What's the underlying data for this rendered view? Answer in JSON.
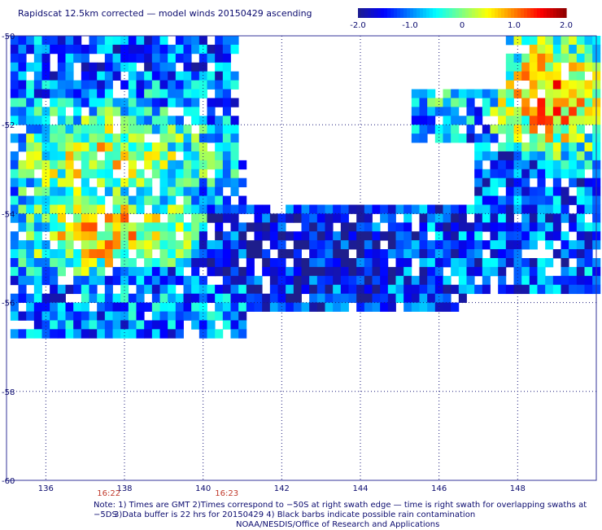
{
  "title": "Rapidscat 12.5km corrected — model winds 20150429 ascending",
  "colorbar": {
    "ticks": [
      "-2.0",
      "-1.0",
      "0",
      "1.0",
      "2.0"
    ],
    "tick_values": [
      -2,
      -1,
      0,
      1,
      2
    ],
    "range": [
      -2,
      2
    ],
    "colors": [
      "#1e1e8c",
      "#0000ff",
      "#0080ff",
      "#00ffff",
      "#80ff80",
      "#ffff00",
      "#ff8000",
      "#ff0000",
      "#8b0000"
    ]
  },
  "chart_data": {
    "type": "heatmap",
    "title": "Rapidscat 12.5km corrected — model winds 20150429 ascending",
    "xlabel": "",
    "ylabel": "",
    "xlim": [
      135,
      150
    ],
    "ylim": [
      -60,
      -50
    ],
    "x_ticks": [
      "136",
      "138",
      "140",
      "142",
      "144",
      "146",
      "148"
    ],
    "x_tick_values": [
      136,
      138,
      140,
      142,
      144,
      146,
      148
    ],
    "y_ticks": [
      "-50",
      "-52",
      "-54",
      "-56",
      "-58",
      "-60"
    ],
    "y_tick_values": [
      -50,
      -52,
      -54,
      -56,
      -58,
      -60
    ],
    "grid": true,
    "value_range": [
      -2,
      2
    ],
    "swath_times": [
      {
        "label": "16:22",
        "x": 137.6
      },
      {
        "label": "16:23",
        "x": 140.6
      }
    ],
    "regions": [
      {
        "lon": [
          135,
          140
        ],
        "lat": [
          -53.5,
          -51.8
        ],
        "level": 0.4
      },
      {
        "lon": [
          135.5,
          139.5
        ],
        "lat": [
          -55.2,
          -53.5
        ],
        "level": 0.6
      },
      {
        "lon": [
          136,
          141
        ],
        "lat": [
          -56.5,
          -55.2
        ],
        "level": -1.0
      },
      {
        "lon": [
          140,
          145
        ],
        "lat": [
          -55.5,
          -54.0
        ],
        "level": -1.7
      },
      {
        "lon": [
          144,
          147
        ],
        "lat": [
          -52.0,
          -50.5
        ],
        "level": -0.6
      },
      {
        "lon": [
          147.5,
          150
        ],
        "lat": [
          -52.5,
          -50.0
        ],
        "level": 0.9
      },
      {
        "lon": [
          146,
          150
        ],
        "lat": [
          -55.5,
          -53.0
        ],
        "level": -1.2
      }
    ]
  },
  "notes": {
    "line1": "Note: 1) Times are GMT 2)Times correspond to −50S at right swath edge — time is right swath for overlapping swaths at −5DS",
    "line2": "3)Data buffer is 22 hrs for 20150429 4) Black barbs indicate possible rain contamination",
    "line3": "NOAA/NESDIS/Office of Research and Applications"
  }
}
